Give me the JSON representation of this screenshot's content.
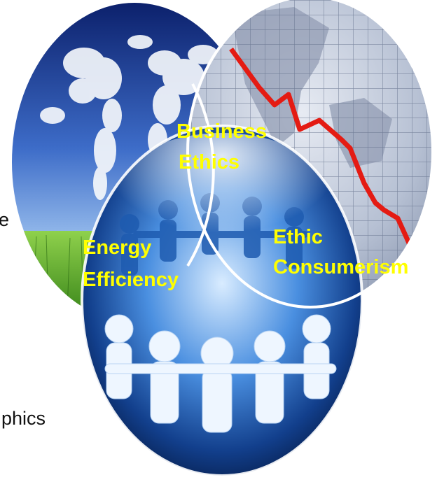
{
  "diagram": {
    "labels": {
      "business_ethics": [
        "Business",
        "Ethics"
      ],
      "energy_efficiency": [
        "Energy",
        "Efficiency"
      ],
      "ethic_consumerism": [
        "Ethic",
        "Consumerism"
      ]
    },
    "label_color": "#ffff00",
    "circle_outline_color": "#ffffff"
  },
  "background_text": {
    "fragment_1": "e",
    "fragment_2": "phics"
  }
}
